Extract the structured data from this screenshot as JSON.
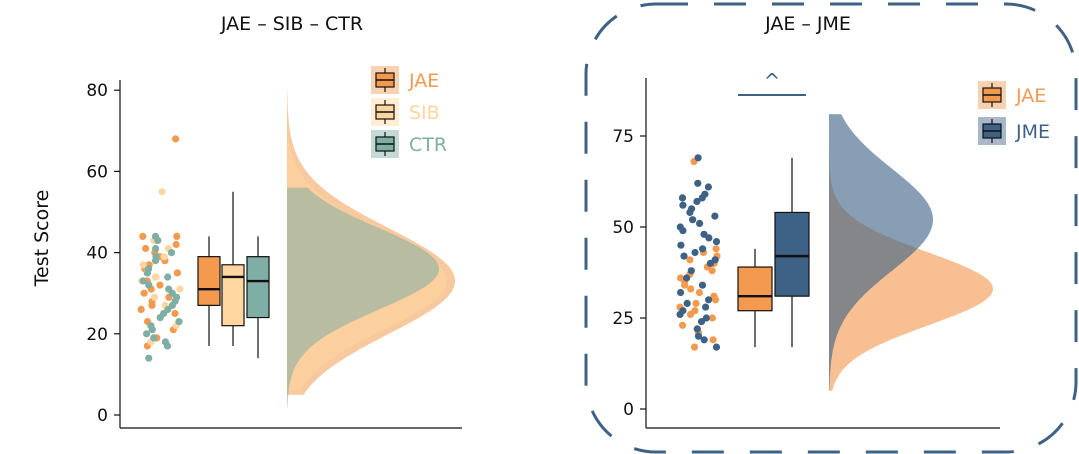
{
  "y_label": "Test Score",
  "colors": {
    "JAE": "#F39A4F",
    "SIB": "#FFD6A0",
    "CTR": "#7FAEA4",
    "JME": "#3E6286",
    "frame": "#3E6286"
  },
  "chart_data": [
    {
      "type": "raincloud",
      "title": "JAE – SIB – CTR",
      "ylabel": "Test Score",
      "ylim": [
        0,
        85
      ],
      "yticks": [
        0,
        20,
        40,
        60,
        80
      ],
      "legend_position": "top-right",
      "series": [
        {
          "name": "JAE",
          "color": "#F39A4F",
          "box": {
            "q1": 27,
            "median": 31,
            "q3": 39,
            "whisker_low": 17,
            "whisker_high": 44
          },
          "points": [
            68,
            44,
            44,
            43,
            42,
            41,
            40,
            39,
            38,
            37,
            36,
            35,
            34,
            33,
            32,
            31,
            30,
            29,
            28,
            27,
            26,
            25,
            23,
            21,
            19,
            17
          ],
          "density_peak": 33
        },
        {
          "name": "SIB",
          "color": "#FFD6A0",
          "box": {
            "q1": 22,
            "median": 34,
            "q3": 37,
            "whisker_low": 17,
            "whisker_high": 55
          },
          "points": [
            55,
            43,
            41,
            39,
            37,
            35,
            34,
            33,
            31,
            29,
            27,
            25,
            22,
            18
          ],
          "density_peak": 33
        },
        {
          "name": "CTR",
          "color": "#7FAEA4",
          "box": {
            "q1": 24,
            "median": 33,
            "q3": 39,
            "whisker_low": 14,
            "whisker_high": 44
          },
          "points": [
            44,
            43,
            41,
            40,
            39,
            38,
            36,
            35,
            34,
            33,
            32,
            31,
            30,
            29,
            28,
            27,
            26,
            25,
            24,
            23,
            22,
            21,
            20,
            19,
            18,
            17,
            14
          ],
          "density_peak": 36
        }
      ]
    },
    {
      "type": "raincloud",
      "title": "JAE – JME",
      "ylim": [
        0,
        85
      ],
      "yticks": [
        0,
        25,
        50,
        75
      ],
      "significance_label": "^",
      "legend_position": "top-right",
      "series": [
        {
          "name": "JAE",
          "color": "#F39A4F",
          "box": {
            "q1": 27,
            "median": 31,
            "q3": 39,
            "whisker_low": 17,
            "whisker_high": 44
          },
          "points": [
            68,
            44,
            43,
            42,
            41,
            40,
            39,
            38,
            37,
            36,
            35,
            34,
            33,
            32,
            31,
            30,
            29,
            28,
            27,
            26,
            25,
            23,
            21,
            19,
            17
          ],
          "density_peak": 33
        },
        {
          "name": "JME",
          "color": "#3E6286",
          "box": {
            "q1": 31,
            "median": 42,
            "q3": 54,
            "whisker_low": 17,
            "whisker_high": 69
          },
          "points": [
            69,
            62,
            61,
            59,
            58,
            58,
            57,
            56,
            55,
            54,
            53,
            52,
            51,
            50,
            49,
            48,
            47,
            46,
            45,
            44,
            43,
            42,
            41,
            40,
            38,
            36,
            34,
            32,
            30,
            29,
            28,
            27,
            26,
            25,
            24,
            22,
            20,
            19,
            17
          ],
          "density_peak": 52
        }
      ]
    }
  ]
}
